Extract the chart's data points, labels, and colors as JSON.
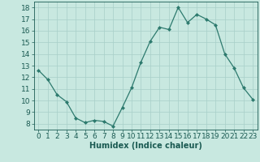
{
  "x": [
    0,
    1,
    2,
    3,
    4,
    5,
    6,
    7,
    8,
    9,
    10,
    11,
    12,
    13,
    14,
    15,
    16,
    17,
    18,
    19,
    20,
    21,
    22,
    23
  ],
  "y": [
    12.6,
    11.8,
    10.5,
    9.9,
    8.5,
    8.1,
    8.3,
    8.2,
    7.8,
    9.4,
    11.1,
    13.3,
    15.1,
    16.3,
    16.1,
    18.0,
    16.7,
    17.4,
    17.0,
    16.5,
    14.0,
    12.8,
    11.1,
    10.1
  ],
  "line_color": "#2d7a6e",
  "marker": "D",
  "marker_size": 2,
  "bg_color": "#c8e8e0",
  "grid_color": "#a8cfc8",
  "xlabel": "Humidex (Indice chaleur)",
  "xlim": [
    -0.5,
    23.5
  ],
  "ylim": [
    7.5,
    18.5
  ],
  "yticks": [
    8,
    9,
    10,
    11,
    12,
    13,
    14,
    15,
    16,
    17,
    18
  ],
  "xticks": [
    0,
    1,
    2,
    3,
    4,
    5,
    6,
    7,
    8,
    9,
    10,
    11,
    12,
    13,
    14,
    15,
    16,
    17,
    18,
    19,
    20,
    21,
    22,
    23
  ],
  "font_color": "#1a5a52",
  "xlabel_fontsize": 7,
  "tick_fontsize": 6.5
}
